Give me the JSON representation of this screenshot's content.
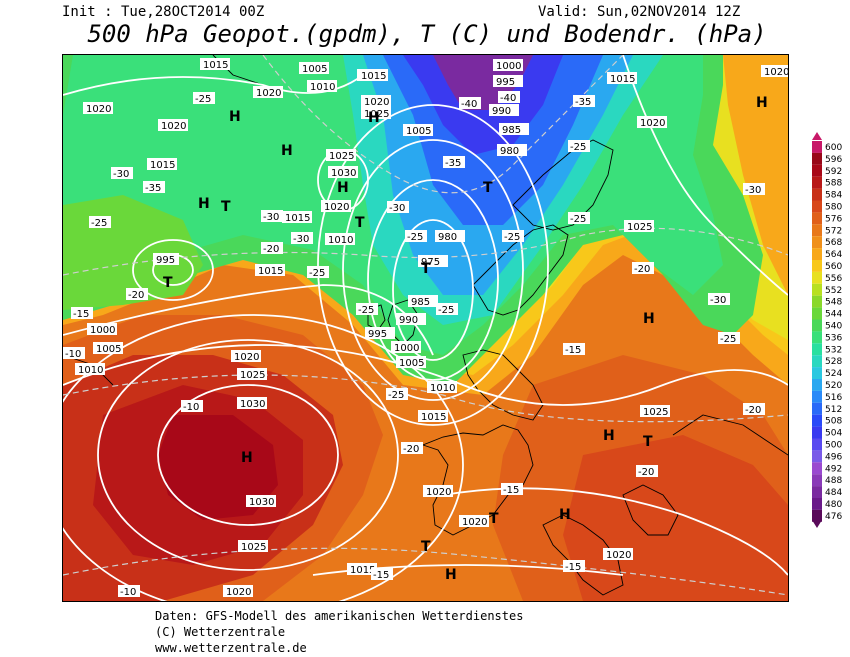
{
  "header": {
    "init": "Init : Tue,28OCT2014 00Z",
    "valid": "Valid: Sun,02NOV2014 12Z",
    "title": "500 hPa Geopot.(gpdm), T (C) und Bodendr. (hPa)"
  },
  "pressure_labels": [
    "1015",
    "1005",
    "1010",
    "1020",
    "1025",
    "1030",
    "1000",
    "995",
    "990",
    "985",
    "980",
    "975"
  ],
  "temperature_labels": [
    "-10",
    "-15",
    "-20",
    "-25",
    "-30",
    "-35",
    "-40"
  ],
  "highs_lows": [
    "H",
    "T"
  ],
  "colors": {
    "c476": "#5a0a5a",
    "c480": "#6a1a8a",
    "c484": "#7a2aa0",
    "c488": "#8a3ab8",
    "c492": "#9a4ad0",
    "c496": "#7a5ae8",
    "c500": "#5a4af0",
    "c504": "#3a3af0",
    "c508": "#2a4af8",
    "c512": "#2a6af8",
    "c516": "#2a8af8",
    "c520": "#2aa8f0",
    "c524": "#2ac8e0",
    "c528": "#2ad8c0",
    "c532": "#2ae0a0",
    "c536": "#3ae07a",
    "c540": "#4ad85a",
    "c544": "#6ad83a",
    "c548": "#8ad82a",
    "c552": "#b8e020",
    "c556": "#e8e020",
    "c560": "#f8c81a",
    "c564": "#f8a81a",
    "c568": "#f0901a",
    "c572": "#e8781a",
    "c576": "#e0601a",
    "c580": "#d8481a",
    "c584": "#c83018",
    "c588": "#b81818",
    "c592": "#a80818",
    "c596": "#980818",
    "c600": "#c81868"
  },
  "legend": {
    "levels": [
      "600",
      "596",
      "592",
      "588",
      "584",
      "580",
      "576",
      "572",
      "568",
      "564",
      "560",
      "556",
      "552",
      "548",
      "544",
      "540",
      "536",
      "532",
      "528",
      "524",
      "520",
      "516",
      "512",
      "508",
      "504",
      "500",
      "496",
      "492",
      "488",
      "484",
      "480",
      "476"
    ]
  },
  "credits": {
    "line1": "Daten: GFS-Modell des amerikanischen Wetterdienstes",
    "line2": "(C) Wetterzentrale",
    "line3": "www.wetterzentrale.de"
  }
}
